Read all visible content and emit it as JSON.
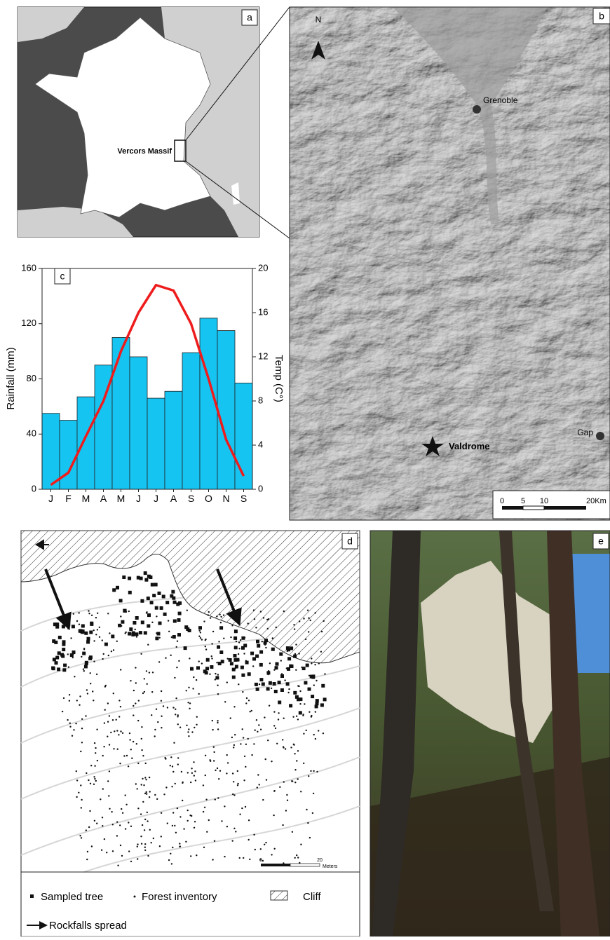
{
  "panels": {
    "a": {
      "label": "a",
      "place": "Vercors Massif"
    },
    "b": {
      "label": "b",
      "north": "N",
      "places": [
        "Grenoble",
        "Valdrome",
        "Gap"
      ],
      "scale": [
        "0",
        "5",
        "10",
        "20Km"
      ]
    },
    "c": {
      "label": "c"
    },
    "d": {
      "label": "d",
      "scale": [
        "0",
        "20",
        "Meters"
      ],
      "legend": [
        "Sampled tree",
        "Forest inventory",
        "Cliff",
        "Rockfalls spread"
      ]
    },
    "e": {
      "label": "e"
    }
  },
  "chart_data": {
    "type": "bar",
    "categories": [
      "J",
      "F",
      "M",
      "A",
      "M",
      "J",
      "J",
      "A",
      "S",
      "O",
      "N",
      "S"
    ],
    "ylabel": "Rainfall (mm)",
    "y2label": "Temp (C°)",
    "ylim": [
      0,
      160
    ],
    "yticks": [
      0,
      40,
      80,
      120,
      160
    ],
    "y2lim": [
      0,
      20
    ],
    "y2ticks": [
      0,
      4,
      8,
      12,
      16,
      20
    ],
    "series": [
      {
        "type": "bar",
        "color": "#16c4f2",
        "values": [
          55,
          50,
          67,
          90,
          110,
          96,
          66,
          71,
          99,
          124,
          115,
          77
        ]
      },
      {
        "type": "line",
        "axis": "y2",
        "color": "#ee1c1c",
        "values": [
          0.4,
          1.5,
          4.8,
          8,
          12.5,
          16,
          18.5,
          18,
          15,
          10,
          4.5,
          1.2
        ]
      }
    ]
  }
}
